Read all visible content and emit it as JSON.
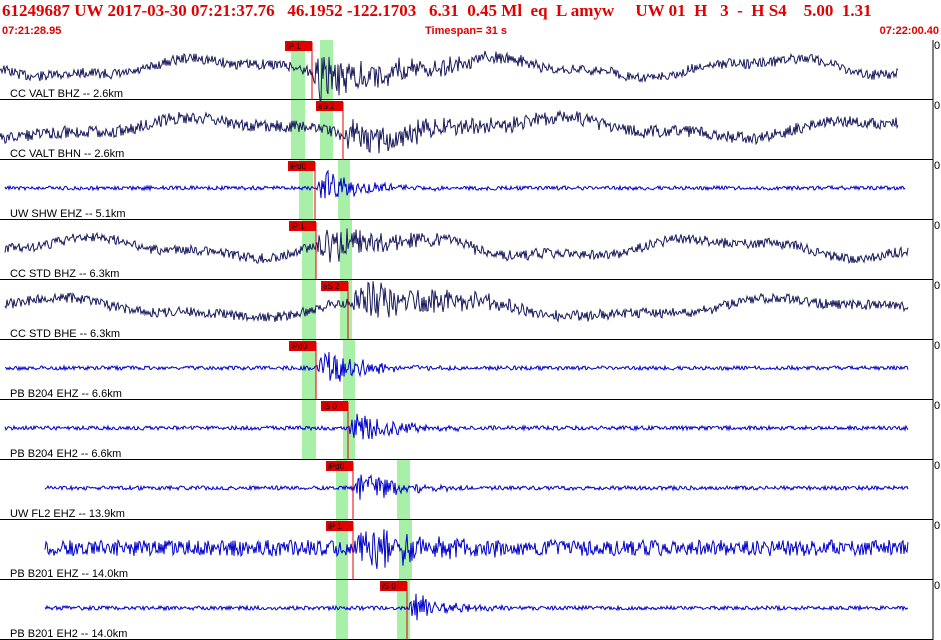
{
  "header": {
    "title": "61249687 UW 2017-03-30 07:21:37.76   46.1952 -122.1703   6.31  0.45 Ml  eq  L amyw     UW 01  H   3  -  H S4    5.00  1.31",
    "time_start": "07:21:28.95",
    "timespan": "Timespan=  31 s",
    "time_end": "07:22:00.40"
  },
  "colors": {
    "header_red": "#e00000",
    "trace_dark": "#1a1a5e",
    "trace_blue": "#0000cc",
    "window_green": "#a8f0a8",
    "pick_red": "#e00000"
  },
  "traces": [
    {
      "label": "CC VALT BHZ -- 2.6km",
      "color": "dark",
      "picks": [
        {
          "text": "iP 1",
          "type": "P"
        }
      ]
    },
    {
      "label": "CC VALT BHN -- 2.6km",
      "color": "dark",
      "picks": [
        {
          "text": "eS 2",
          "type": "S"
        }
      ]
    },
    {
      "label": "UW SHW EHZ -- 5.1km",
      "color": "blue",
      "picks": [
        {
          "text": "iPd0",
          "type": "P"
        }
      ]
    },
    {
      "label": "CC STD BHZ -- 6.3km",
      "color": "dark",
      "picks": [
        {
          "text": "iP 1",
          "type": "P"
        }
      ]
    },
    {
      "label": "CC STD BHE -- 6.3km",
      "color": "dark",
      "picks": [
        {
          "text": "eS 2",
          "type": "S"
        }
      ]
    },
    {
      "label": "PB B204 EHZ -- 6.6km",
      "color": "blue",
      "picks": [
        {
          "text": "iPd0",
          "type": "P"
        }
      ]
    },
    {
      "label": "PB B204 EH2 -- 6.6km",
      "color": "blue",
      "picks": [
        {
          "text": "iS 0",
          "type": "S"
        }
      ]
    },
    {
      "label": "UW FL2 EHZ -- 13.9km",
      "color": "blue",
      "picks": [
        {
          "text": "iPd0",
          "type": "P"
        }
      ]
    },
    {
      "label": "PB B201 EHZ -- 14.0km",
      "color": "blue",
      "picks": [
        {
          "text": "iP 1",
          "type": "P"
        }
      ]
    },
    {
      "label": "PB B201 EH2 -- 14.0km",
      "color": "blue",
      "picks": [
        {
          "text": "iS 0",
          "type": "S"
        }
      ]
    }
  ]
}
